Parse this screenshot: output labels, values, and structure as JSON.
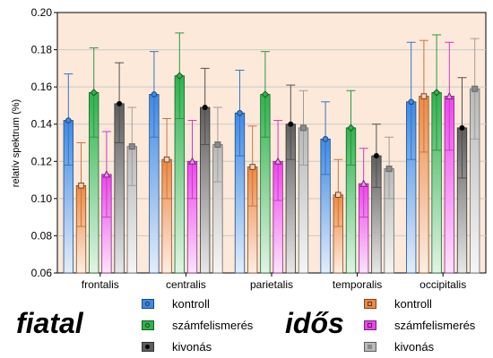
{
  "chart_data": {
    "type": "bar",
    "ylabel": "relatív spektrum (%)",
    "ylim": [
      0.06,
      0.2
    ],
    "yticks": [
      "0.06",
      "0.08",
      "0.10",
      "0.12",
      "0.14",
      "0.16",
      "0.18",
      "0.20"
    ],
    "grid": true,
    "categories": [
      "frontalis",
      "centralis",
      "parietalis",
      "temporalis",
      "occipitalis"
    ],
    "series": [
      {
        "group": "fiatal",
        "name": "kontroll",
        "color": "#3e8ae6",
        "marker": "circle",
        "values": [
          0.142,
          0.156,
          0.146,
          0.132,
          0.152
        ],
        "err_low": [
          0.118,
          0.133,
          0.123,
          0.113,
          0.121
        ],
        "err_high": [
          0.167,
          0.179,
          0.169,
          0.152,
          0.184
        ]
      },
      {
        "group": "idős",
        "name": "kontroll",
        "color": "#ee8a44",
        "marker": "square",
        "values": [
          0.107,
          0.121,
          0.117,
          0.102,
          0.155
        ],
        "err_low": [
          0.085,
          0.1,
          0.096,
          0.085,
          0.125
        ],
        "err_high": [
          0.13,
          0.143,
          0.139,
          0.121,
          0.185
        ]
      },
      {
        "group": "fiatal",
        "name": "számfelismerés",
        "color": "#2fb34d",
        "marker": "diamond",
        "values": [
          0.157,
          0.166,
          0.156,
          0.138,
          0.157
        ],
        "err_low": [
          0.133,
          0.143,
          0.133,
          0.118,
          0.126
        ],
        "err_high": [
          0.181,
          0.189,
          0.179,
          0.158,
          0.188
        ]
      },
      {
        "group": "idős",
        "name": "számfelismerés",
        "color": "#ee44ee",
        "marker": "triangle",
        "values": [
          0.113,
          0.12,
          0.12,
          0.108,
          0.155
        ],
        "err_low": [
          0.09,
          0.1,
          0.099,
          0.09,
          0.126
        ],
        "err_high": [
          0.136,
          0.142,
          0.142,
          0.127,
          0.184
        ]
      },
      {
        "group": "fiatal",
        "name": "kivonás",
        "color": "#5e5e5e",
        "marker": "dot",
        "values": [
          0.151,
          0.149,
          0.14,
          0.123,
          0.138
        ],
        "err_low": [
          0.13,
          0.129,
          0.121,
          0.106,
          0.111
        ],
        "err_high": [
          0.173,
          0.17,
          0.161,
          0.14,
          0.165
        ]
      },
      {
        "group": "idős",
        "name": "kivonás",
        "color": "#b9b9b9",
        "marker": "square-filled",
        "values": [
          0.128,
          0.129,
          0.138,
          0.116,
          0.159
        ],
        "err_low": [
          0.107,
          0.109,
          0.118,
          0.1,
          0.132
        ],
        "err_high": [
          0.149,
          0.149,
          0.158,
          0.133,
          0.186
        ]
      }
    ]
  },
  "legend": {
    "fiatal_label": "fiatal",
    "idos_label": "idős",
    "fiatal_items": [
      "kontroll",
      "számfelismerés",
      "kivonás"
    ],
    "idos_items": [
      "kontroll",
      "számfelismerés",
      "kivonás"
    ]
  }
}
